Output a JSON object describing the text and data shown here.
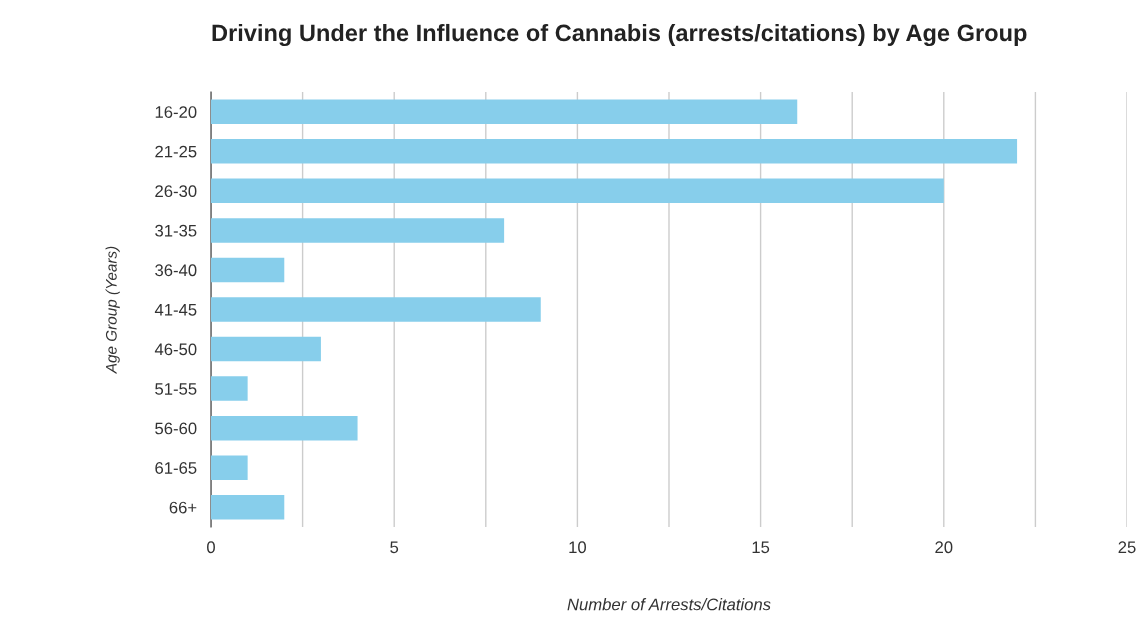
{
  "chart_data": {
    "type": "bar",
    "orientation": "horizontal",
    "title": "Driving Under the Influence of Cannabis (arrests/citations) by Age Group",
    "xlabel": "Number of Arrests/Citations",
    "ylabel": "Age Group (Years)",
    "categories": [
      "16-20",
      "21-25",
      "26-30",
      "31-35",
      "36-40",
      "41-45",
      "46-50",
      "51-55",
      "56-60",
      "61-65",
      "66+"
    ],
    "values": [
      16,
      22,
      20,
      8,
      2,
      9,
      3,
      1,
      4,
      1,
      2
    ],
    "color": "#87ceeb",
    "xlim": [
      0,
      25
    ],
    "xticks": [
      0,
      {
        "value": 2.5,
        "label": null
      },
      5,
      {
        "value": 7.5,
        "label": null
      },
      10,
      {
        "value": 12.5,
        "label": null
      },
      15,
      {
        "value": 17.5,
        "label": null
      },
      20,
      {
        "value": 22.5,
        "label": null
      },
      25
    ],
    "grid": "x"
  }
}
